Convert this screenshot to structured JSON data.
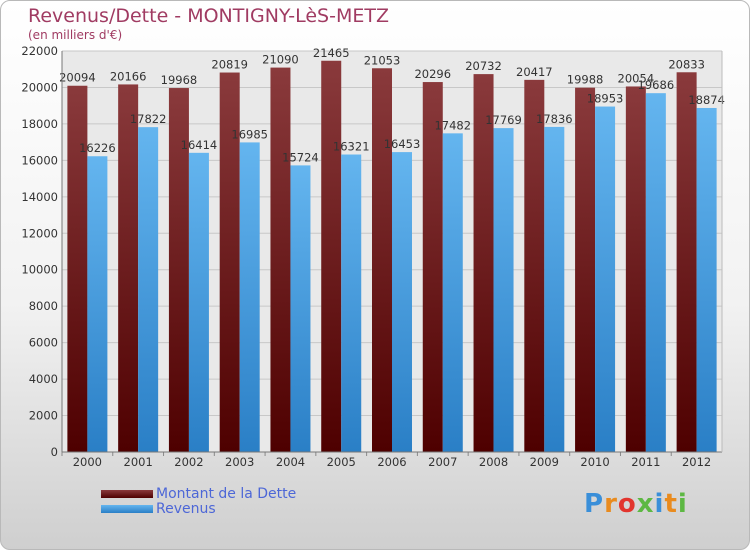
{
  "chart_data": {
    "type": "bar",
    "title": "Revenus/Dette - MONTIGNY-LèS-METZ",
    "subtitle": "(en milliers d'€)",
    "categories": [
      "2000",
      "2001",
      "2002",
      "2003",
      "2004",
      "2005",
      "2006",
      "2007",
      "2008",
      "2009",
      "2010",
      "2011",
      "2012"
    ],
    "series": [
      {
        "name": "Montant de la Dette",
        "color": "#6a1416",
        "values": [
          20094,
          20166,
          19968,
          20819,
          21090,
          21465,
          21053,
          20296,
          20732,
          20417,
          19988,
          20054,
          20833
        ]
      },
      {
        "name": "Revenus",
        "color": "#3d9ae0",
        "values": [
          16226,
          17822,
          16414,
          16985,
          15724,
          16321,
          16453,
          17482,
          17769,
          17836,
          18953,
          19686,
          18874
        ]
      }
    ],
    "ylim": [
      0,
      22000
    ],
    "yticks": [
      0,
      2000,
      4000,
      6000,
      8000,
      10000,
      12000,
      14000,
      16000,
      18000,
      20000,
      22000
    ],
    "grid": true,
    "legend_position": "bottom-left"
  },
  "logo": {
    "text": "Proxiti",
    "letter_colors": [
      "#3a8fd9",
      "#e98b1e",
      "#e2342d",
      "#5db843",
      "#3a8fd9",
      "#e98b1e",
      "#5db843"
    ]
  }
}
